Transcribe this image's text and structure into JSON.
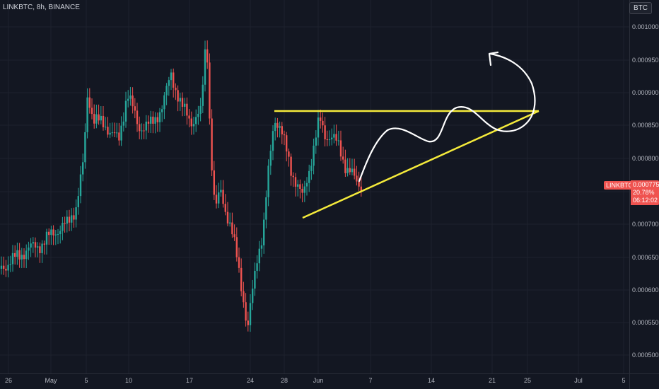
{
  "header": {
    "symbol": "LINKBTC, 8h, BINANCE",
    "currency": "BTC"
  },
  "price_axis": [
    "0.001000",
    "0.000950",
    "0.000900",
    "0.000850",
    "0.000800",
    "0.000750",
    "0.000700",
    "0.000650",
    "0.000600",
    "0.000550",
    "0.000500"
  ],
  "time_axis": [
    "26",
    "May",
    "5",
    "10",
    "17",
    "24",
    "28",
    "Jun",
    "7",
    "14",
    "21",
    "25",
    "Jul",
    "5"
  ],
  "last_price": {
    "symbol": "LINKBTC",
    "price": "0.0007758",
    "change": "20.78%",
    "countdown": "06:12:02"
  },
  "colors": {
    "up": "#26a69a",
    "down": "#ef5350",
    "background": "#131722",
    "trendline": "#f5eb3b",
    "drawing": "#ffffff"
  }
}
